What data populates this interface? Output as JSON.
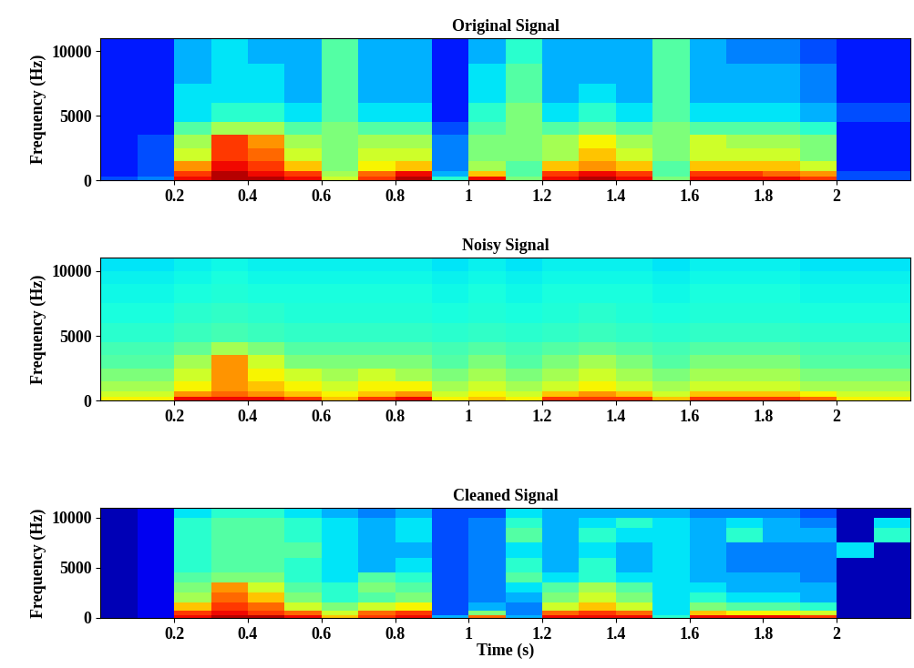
{
  "chart_data": [
    {
      "type": "heatmap",
      "title": "Original Signal",
      "y_label": "Frequency (Hz)",
      "xlim": [
        0,
        2.2
      ],
      "ylim": [
        0,
        11000
      ],
      "xticks": [
        0.2,
        0.4,
        0.6,
        0.8,
        1,
        1.2,
        1.4,
        1.6,
        1.8,
        2
      ],
      "yticks": [
        0,
        5000,
        10000
      ],
      "clim": [
        0,
        1
      ],
      "x_edges": [
        0,
        0.1,
        0.2,
        0.3,
        0.4,
        0.5,
        0.6,
        0.7,
        0.8,
        0.9,
        1.0,
        1.1,
        1.2,
        1.3,
        1.4,
        1.5,
        1.6,
        1.7,
        1.8,
        1.9,
        2.0,
        2.1,
        2.2
      ],
      "y_edges": [
        0,
        300,
        700,
        1500,
        2500,
        3500,
        4500,
        6000,
        7500,
        9000,
        10000,
        11000
      ],
      "cells": [
        [
          0.2,
          0.25,
          0.9,
          0.95,
          0.95,
          0.9,
          0.6,
          0.85,
          0.95,
          0.4,
          0.9,
          0.5,
          0.9,
          0.95,
          0.9,
          0.5,
          0.9,
          0.9,
          0.9,
          0.85,
          0.2,
          0.2
        ],
        [
          0.15,
          0.2,
          0.85,
          0.95,
          0.9,
          0.85,
          0.55,
          0.8,
          0.9,
          0.3,
          0.7,
          0.45,
          0.85,
          0.9,
          0.85,
          0.45,
          0.85,
          0.85,
          0.8,
          0.75,
          0.2,
          0.2
        ],
        [
          0.15,
          0.2,
          0.75,
          0.9,
          0.85,
          0.7,
          0.5,
          0.65,
          0.7,
          0.25,
          0.55,
          0.45,
          0.7,
          0.75,
          0.7,
          0.45,
          0.7,
          0.7,
          0.7,
          0.6,
          0.15,
          0.15
        ],
        [
          0.15,
          0.2,
          0.6,
          0.85,
          0.8,
          0.6,
          0.5,
          0.6,
          0.6,
          0.25,
          0.5,
          0.5,
          0.55,
          0.7,
          0.6,
          0.5,
          0.6,
          0.6,
          0.6,
          0.5,
          0.15,
          0.15
        ],
        [
          0.15,
          0.2,
          0.55,
          0.85,
          0.75,
          0.55,
          0.5,
          0.55,
          0.55,
          0.25,
          0.5,
          0.5,
          0.55,
          0.65,
          0.55,
          0.5,
          0.6,
          0.55,
          0.55,
          0.5,
          0.15,
          0.15
        ],
        [
          0.15,
          0.15,
          0.45,
          0.55,
          0.55,
          0.45,
          0.5,
          0.45,
          0.45,
          0.2,
          0.45,
          0.5,
          0.45,
          0.5,
          0.45,
          0.5,
          0.45,
          0.45,
          0.45,
          0.4,
          0.15,
          0.15
        ],
        [
          0.15,
          0.15,
          0.35,
          0.4,
          0.4,
          0.35,
          0.45,
          0.35,
          0.35,
          0.15,
          0.4,
          0.5,
          0.35,
          0.4,
          0.35,
          0.45,
          0.35,
          0.35,
          0.35,
          0.3,
          0.2,
          0.2
        ],
        [
          0.15,
          0.15,
          0.35,
          0.35,
          0.35,
          0.3,
          0.45,
          0.3,
          0.3,
          0.15,
          0.35,
          0.45,
          0.3,
          0.35,
          0.3,
          0.45,
          0.3,
          0.3,
          0.3,
          0.25,
          0.15,
          0.15
        ],
        [
          0.15,
          0.15,
          0.3,
          0.35,
          0.35,
          0.3,
          0.45,
          0.3,
          0.3,
          0.15,
          0.35,
          0.45,
          0.3,
          0.3,
          0.3,
          0.45,
          0.3,
          0.3,
          0.3,
          0.25,
          0.15,
          0.15
        ],
        [
          0.15,
          0.15,
          0.3,
          0.35,
          0.3,
          0.3,
          0.45,
          0.3,
          0.3,
          0.15,
          0.3,
          0.4,
          0.3,
          0.3,
          0.3,
          0.45,
          0.3,
          0.25,
          0.25,
          0.2,
          0.15,
          0.15
        ],
        [
          0.15,
          0.15,
          0.3,
          0.35,
          0.3,
          0.3,
          0.45,
          0.3,
          0.3,
          0.15,
          0.3,
          0.4,
          0.3,
          0.3,
          0.3,
          0.45,
          0.3,
          0.25,
          0.25,
          0.2,
          0.15,
          0.15
        ]
      ]
    },
    {
      "type": "heatmap",
      "title": "Noisy Signal",
      "y_label": "Frequency (Hz)",
      "xlim": [
        0,
        2.2
      ],
      "ylim": [
        0,
        11000
      ],
      "xticks": [
        0.2,
        0.4,
        0.6,
        0.8,
        1,
        1.2,
        1.4,
        1.6,
        1.8,
        2
      ],
      "yticks": [
        0,
        5000,
        10000
      ],
      "clim": [
        0,
        1
      ],
      "x_edges": [
        0,
        0.1,
        0.2,
        0.3,
        0.4,
        0.5,
        0.6,
        0.7,
        0.8,
        0.9,
        1.0,
        1.1,
        1.2,
        1.3,
        1.4,
        1.5,
        1.6,
        1.7,
        1.8,
        1.9,
        2.0,
        2.1,
        2.2
      ],
      "y_edges": [
        0,
        300,
        700,
        1500,
        2500,
        3500,
        4500,
        6000,
        7500,
        9000,
        10000,
        11000
      ],
      "cells": [
        [
          0.65,
          0.65,
          0.9,
          0.9,
          0.9,
          0.85,
          0.7,
          0.85,
          0.9,
          0.65,
          0.7,
          0.65,
          0.85,
          0.85,
          0.85,
          0.7,
          0.85,
          0.85,
          0.85,
          0.8,
          0.65,
          0.65
        ],
        [
          0.6,
          0.6,
          0.75,
          0.8,
          0.75,
          0.7,
          0.65,
          0.7,
          0.75,
          0.6,
          0.65,
          0.6,
          0.7,
          0.75,
          0.7,
          0.6,
          0.7,
          0.7,
          0.7,
          0.65,
          0.6,
          0.6
        ],
        [
          0.55,
          0.55,
          0.65,
          0.75,
          0.7,
          0.65,
          0.6,
          0.65,
          0.65,
          0.55,
          0.6,
          0.55,
          0.6,
          0.65,
          0.6,
          0.55,
          0.6,
          0.6,
          0.6,
          0.55,
          0.55,
          0.55
        ],
        [
          0.5,
          0.5,
          0.6,
          0.75,
          0.65,
          0.6,
          0.55,
          0.6,
          0.55,
          0.5,
          0.55,
          0.5,
          0.55,
          0.6,
          0.55,
          0.5,
          0.55,
          0.55,
          0.55,
          0.5,
          0.5,
          0.5
        ],
        [
          0.45,
          0.45,
          0.55,
          0.75,
          0.6,
          0.5,
          0.5,
          0.5,
          0.5,
          0.45,
          0.5,
          0.45,
          0.5,
          0.55,
          0.5,
          0.45,
          0.5,
          0.5,
          0.5,
          0.45,
          0.45,
          0.45
        ],
        [
          0.43,
          0.43,
          0.47,
          0.55,
          0.5,
          0.45,
          0.45,
          0.45,
          0.45,
          0.43,
          0.45,
          0.43,
          0.45,
          0.47,
          0.45,
          0.43,
          0.45,
          0.45,
          0.45,
          0.43,
          0.43,
          0.43
        ],
        [
          0.4,
          0.4,
          0.42,
          0.43,
          0.42,
          0.41,
          0.41,
          0.41,
          0.41,
          0.4,
          0.41,
          0.4,
          0.41,
          0.42,
          0.41,
          0.4,
          0.41,
          0.41,
          0.41,
          0.4,
          0.4,
          0.4
        ],
        [
          0.38,
          0.38,
          0.4,
          0.41,
          0.4,
          0.39,
          0.39,
          0.39,
          0.39,
          0.38,
          0.39,
          0.38,
          0.39,
          0.4,
          0.39,
          0.38,
          0.39,
          0.39,
          0.39,
          0.38,
          0.38,
          0.38
        ],
        [
          0.37,
          0.37,
          0.38,
          0.39,
          0.38,
          0.38,
          0.38,
          0.38,
          0.38,
          0.37,
          0.38,
          0.37,
          0.38,
          0.38,
          0.38,
          0.37,
          0.38,
          0.38,
          0.38,
          0.37,
          0.37,
          0.37
        ],
        [
          0.36,
          0.36,
          0.37,
          0.38,
          0.37,
          0.37,
          0.37,
          0.37,
          0.37,
          0.36,
          0.37,
          0.36,
          0.37,
          0.37,
          0.37,
          0.36,
          0.37,
          0.37,
          0.37,
          0.36,
          0.36,
          0.36
        ],
        [
          0.35,
          0.35,
          0.36,
          0.37,
          0.36,
          0.36,
          0.36,
          0.36,
          0.36,
          0.35,
          0.36,
          0.35,
          0.36,
          0.36,
          0.36,
          0.35,
          0.36,
          0.36,
          0.36,
          0.35,
          0.35,
          0.35
        ]
      ]
    },
    {
      "type": "heatmap",
      "title": "Cleaned Signal",
      "y_label": "Frequency (Hz)",
      "x_label": "Time (s)",
      "xlim": [
        0,
        2.2
      ],
      "ylim": [
        0,
        11000
      ],
      "xticks": [
        0.2,
        0.4,
        0.6,
        0.8,
        1,
        1.2,
        1.4,
        1.6,
        1.8,
        2
      ],
      "yticks": [
        0,
        5000,
        10000
      ],
      "clim": [
        0,
        1
      ],
      "x_edges": [
        0,
        0.1,
        0.2,
        0.3,
        0.4,
        0.5,
        0.6,
        0.7,
        0.8,
        0.9,
        1.0,
        1.1,
        1.2,
        1.3,
        1.4,
        1.5,
        1.6,
        1.7,
        1.8,
        1.9,
        2.0,
        2.1,
        2.2
      ],
      "y_edges": [
        0,
        300,
        700,
        1500,
        2500,
        3500,
        4500,
        6000,
        7500,
        9000,
        10000,
        11000
      ],
      "cells": [
        [
          0.05,
          0.1,
          0.9,
          0.95,
          0.95,
          0.9,
          0.7,
          0.85,
          0.9,
          0.3,
          0.8,
          0.3,
          0.9,
          0.9,
          0.9,
          0.4,
          0.9,
          0.9,
          0.9,
          0.85,
          0.05,
          0.05
        ],
        [
          0.05,
          0.1,
          0.85,
          0.9,
          0.85,
          0.8,
          0.6,
          0.8,
          0.85,
          0.2,
          0.5,
          0.25,
          0.8,
          0.85,
          0.8,
          0.35,
          0.7,
          0.65,
          0.65,
          0.6,
          0.05,
          0.05
        ],
        [
          0.05,
          0.1,
          0.7,
          0.85,
          0.8,
          0.6,
          0.5,
          0.6,
          0.65,
          0.2,
          0.3,
          0.25,
          0.6,
          0.7,
          0.6,
          0.35,
          0.5,
          0.45,
          0.45,
          0.4,
          0.05,
          0.05
        ],
        [
          0.05,
          0.1,
          0.55,
          0.8,
          0.7,
          0.5,
          0.4,
          0.45,
          0.5,
          0.2,
          0.25,
          0.3,
          0.5,
          0.6,
          0.5,
          0.35,
          0.4,
          0.35,
          0.35,
          0.3,
          0.05,
          0.05
        ],
        [
          0.05,
          0.1,
          0.5,
          0.75,
          0.6,
          0.45,
          0.4,
          0.5,
          0.45,
          0.2,
          0.25,
          0.35,
          0.45,
          0.55,
          0.45,
          0.35,
          0.35,
          0.3,
          0.3,
          0.3,
          0.05,
          0.05
        ],
        [
          0.05,
          0.1,
          0.45,
          0.5,
          0.5,
          0.4,
          0.35,
          0.45,
          0.4,
          0.2,
          0.25,
          0.45,
          0.35,
          0.4,
          0.35,
          0.35,
          0.3,
          0.3,
          0.3,
          0.25,
          0.05,
          0.05
        ],
        [
          0.05,
          0.1,
          0.4,
          0.45,
          0.45,
          0.4,
          0.35,
          0.3,
          0.35,
          0.2,
          0.25,
          0.4,
          0.3,
          0.4,
          0.3,
          0.35,
          0.3,
          0.25,
          0.25,
          0.25,
          0.05,
          0.05
        ],
        [
          0.05,
          0.1,
          0.4,
          0.45,
          0.45,
          0.45,
          0.35,
          0.3,
          0.3,
          0.2,
          0.25,
          0.35,
          0.3,
          0.35,
          0.3,
          0.35,
          0.3,
          0.25,
          0.25,
          0.25,
          0.35,
          0.05
        ],
        [
          0.05,
          0.1,
          0.4,
          0.45,
          0.45,
          0.4,
          0.35,
          0.3,
          0.35,
          0.2,
          0.25,
          0.45,
          0.3,
          0.4,
          0.35,
          0.35,
          0.3,
          0.4,
          0.3,
          0.3,
          0.05,
          0.4
        ],
        [
          0.05,
          0.1,
          0.4,
          0.45,
          0.45,
          0.4,
          0.35,
          0.3,
          0.35,
          0.2,
          0.25,
          0.4,
          0.3,
          0.35,
          0.4,
          0.35,
          0.3,
          0.35,
          0.3,
          0.25,
          0.05,
          0.35
        ],
        [
          0.05,
          0.1,
          0.35,
          0.4,
          0.4,
          0.35,
          0.3,
          0.25,
          0.3,
          0.2,
          0.2,
          0.35,
          0.3,
          0.3,
          0.3,
          0.3,
          0.25,
          0.25,
          0.25,
          0.2,
          0.05,
          0.05
        ]
      ]
    }
  ]
}
